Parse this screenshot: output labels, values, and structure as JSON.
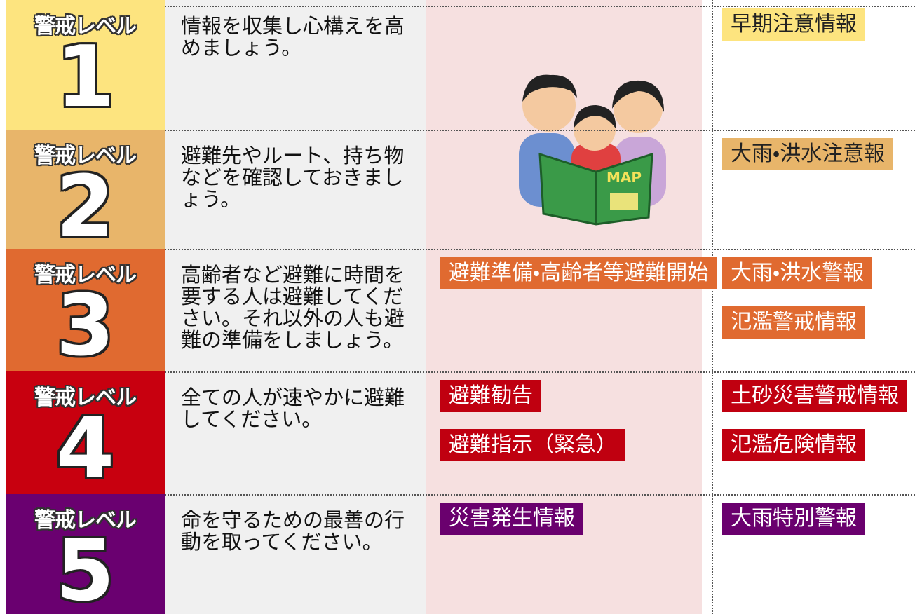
{
  "rows": [
    {
      "level_label": "警戒レベル",
      "level": 1,
      "description": "情報を収集し心構えを高めましょう。",
      "evacuation_info": [],
      "weather_info": [
        "早期注意情報"
      ]
    },
    {
      "level_label": "警戒レベル",
      "level": 2,
      "description": "避難先やルート、持ち物などを確認しておきましょう。",
      "evacuation_info": [],
      "weather_info": [
        "大雨・洪水注意報"
      ]
    },
    {
      "level_label": "警戒レベル",
      "level": 3,
      "description": "高齢者など避難に時間を要する人は避難してください。それ以外の人も避難の準備をしましょう。",
      "evacuation_info": [
        "避難準備・高齢者等避難開始"
      ],
      "weather_info": [
        "大雨・洪水警報",
        "氾濫警戒情報"
      ]
    },
    {
      "level_label": "警戒レベル",
      "level": 4,
      "description": "全ての人が速やかに避難してください。",
      "evacuation_info": [
        "避難勧告",
        "避難指示（緊急）"
      ],
      "weather_info": [
        "土砂災害警戒情報",
        "氾濫危険情報"
      ]
    },
    {
      "level_label": "警戒レベル",
      "level": 5,
      "description": "命を守るための最善の行動を取ってください。",
      "evacuation_info": [
        "災害発生情報"
      ],
      "weather_info": [
        "大雨特別警報"
      ]
    }
  ],
  "illustration_text": "MAP"
}
